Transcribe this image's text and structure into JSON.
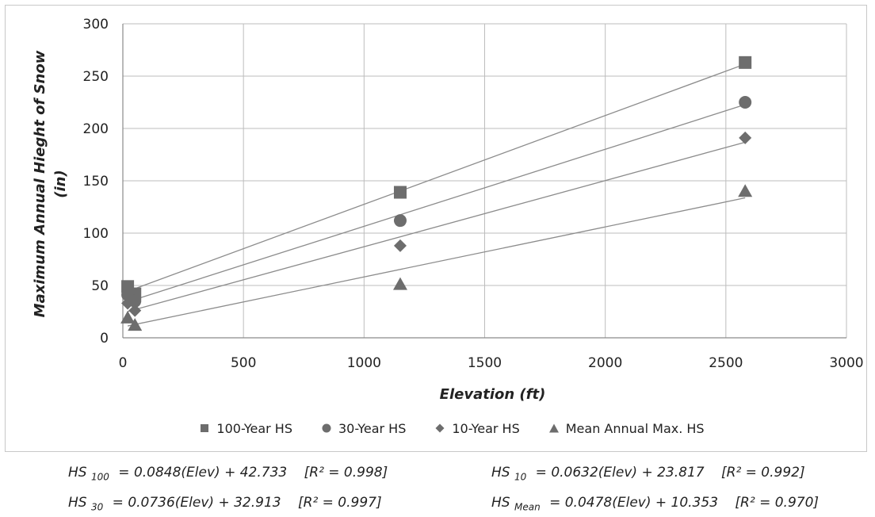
{
  "chart_data": {
    "type": "scatter",
    "title": "",
    "xlabel": "Elevation (ft)",
    "ylabel_line1": "Maximum Annual Hieght of Snow",
    "ylabel_line2": "(in)",
    "xlim": [
      0,
      3000
    ],
    "ylim": [
      0,
      300
    ],
    "xticks": [
      "0",
      "500",
      "1000",
      "1500",
      "2000",
      "2500",
      "3000"
    ],
    "yticks": [
      "0",
      "50",
      "100",
      "150",
      "200",
      "250",
      "300"
    ],
    "grid": true,
    "legend_position": "bottom",
    "marker_color": "#6d6d6d",
    "line_color": "#8c8c8c",
    "series": [
      {
        "name": "100-Year HS",
        "marker": "square",
        "points": [
          [
            20,
            49
          ],
          [
            50,
            42
          ],
          [
            1150,
            139
          ],
          [
            2580,
            263
          ]
        ],
        "trend": {
          "slope": 0.0848,
          "intercept": 42.733
        }
      },
      {
        "name": "30-Year HS",
        "marker": "circle",
        "points": [
          [
            20,
            41
          ],
          [
            50,
            35
          ],
          [
            1150,
            112
          ],
          [
            2580,
            225
          ]
        ],
        "trend": {
          "slope": 0.0736,
          "intercept": 32.913
        }
      },
      {
        "name": "10-Year HS",
        "marker": "diamond",
        "points": [
          [
            20,
            33
          ],
          [
            50,
            26
          ],
          [
            1150,
            88
          ],
          [
            2580,
            191
          ]
        ],
        "trend": {
          "slope": 0.0632,
          "intercept": 23.817
        }
      },
      {
        "name": "Mean Annual Max. HS",
        "marker": "triangle",
        "points": [
          [
            20,
            19
          ],
          [
            50,
            12
          ],
          [
            1150,
            51
          ],
          [
            2580,
            140
          ]
        ],
        "trend": {
          "slope": 0.0478,
          "intercept": 10.353
        }
      }
    ]
  },
  "equations": {
    "eq100": {
      "prefix": "HS",
      "sub": "100",
      "text": "= 0.0848(Elev) + 42.733",
      "r2": "[R² = 0.998]"
    },
    "eq30": {
      "prefix": "HS",
      "sub": "30",
      "text": "= 0.0736(Elev) + 32.913",
      "r2": "[R² = 0.997]"
    },
    "eq10": {
      "prefix": "HS",
      "sub": "10",
      "text": "= 0.0632(Elev) + 23.817",
      "r2": "[R² = 0.992]"
    },
    "eqMean": {
      "prefix": "HS",
      "sub": "Mean",
      "text": "= 0.0478(Elev) + 10.353",
      "r2": "[R² = 0.970]"
    }
  }
}
